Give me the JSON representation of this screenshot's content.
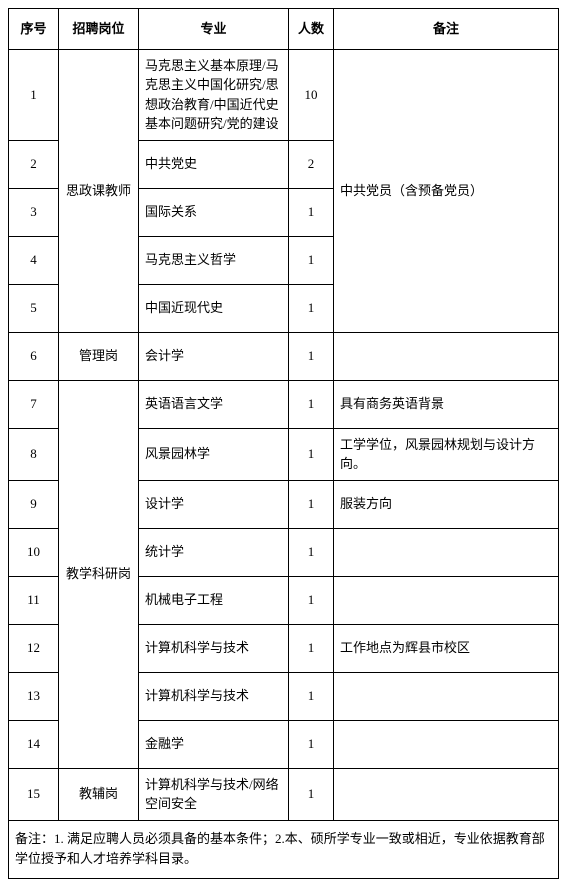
{
  "headers": {
    "seq": "序号",
    "position": "招聘岗位",
    "major": "专业",
    "count": "人数",
    "remark": "备注"
  },
  "positions": {
    "ideological": "思政课教师",
    "management": "管理岗",
    "teaching": "教学科研岗",
    "assistant": "教辅岗"
  },
  "rows": [
    {
      "seq": "1",
      "major": "马克思主义基本原理/马克思主义中国化研究/思想政治教育/中国近代史基本问题研究/党的建设",
      "count": "10"
    },
    {
      "seq": "2",
      "major": "中共党史",
      "count": "2"
    },
    {
      "seq": "3",
      "major": "国际关系",
      "count": "1"
    },
    {
      "seq": "4",
      "major": "马克思主义哲学",
      "count": "1"
    },
    {
      "seq": "5",
      "major": "中国近现代史",
      "count": "1"
    },
    {
      "seq": "6",
      "major": "会计学",
      "count": "1"
    },
    {
      "seq": "7",
      "major": "英语语言文学",
      "count": "1",
      "remark": "具有商务英语背景"
    },
    {
      "seq": "8",
      "major": "风景园林学",
      "count": "1",
      "remark": "工学学位，风景园林规划与设计方向。"
    },
    {
      "seq": "9",
      "major": "设计学",
      "count": "1",
      "remark": "服装方向"
    },
    {
      "seq": "10",
      "major": "统计学",
      "count": "1"
    },
    {
      "seq": "11",
      "major": "机械电子工程",
      "count": "1"
    },
    {
      "seq": "12",
      "major": "计算机科学与技术",
      "count": "1",
      "remark": "工作地点为辉县市校区"
    },
    {
      "seq": "13",
      "major": "计算机科学与技术",
      "count": "1"
    },
    {
      "seq": "14",
      "major": "金融学",
      "count": "1"
    },
    {
      "seq": "15",
      "major": "计算机科学与技术/网络空间安全",
      "count": "1"
    }
  ],
  "remarks": {
    "ideological_remark": "中共党员（含预备党员）"
  },
  "footnote": "备注：1. 满足应聘人员必须具备的基本条件；2.本、硕所学专业一致或相近，专业依据教育部学位授予和人才培养学科目录。"
}
